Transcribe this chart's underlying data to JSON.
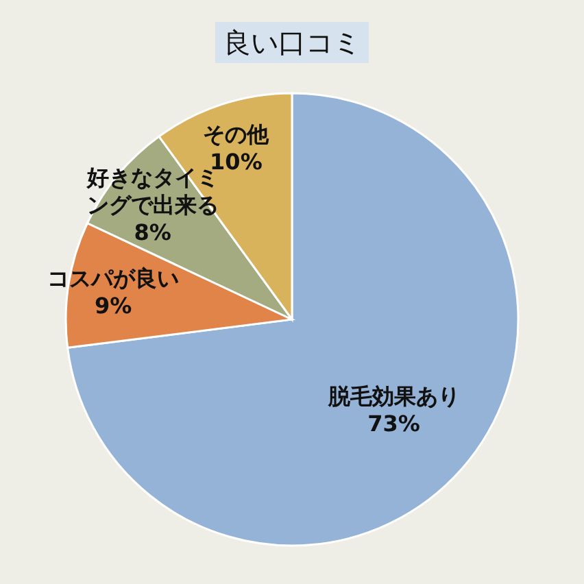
{
  "chart_data": {
    "type": "pie",
    "title": "良い口コミ",
    "categories": [
      "脱毛効果あり",
      "コスパが良い",
      "好きなタイミングで出来る",
      "その他"
    ],
    "values": [
      73,
      9,
      8,
      10
    ],
    "colors": [
      "#95b3d7",
      "#e0844a",
      "#a5ab80",
      "#d9b25c"
    ],
    "value_labels": [
      "73%",
      "9%",
      "8%",
      "10%"
    ]
  }
}
